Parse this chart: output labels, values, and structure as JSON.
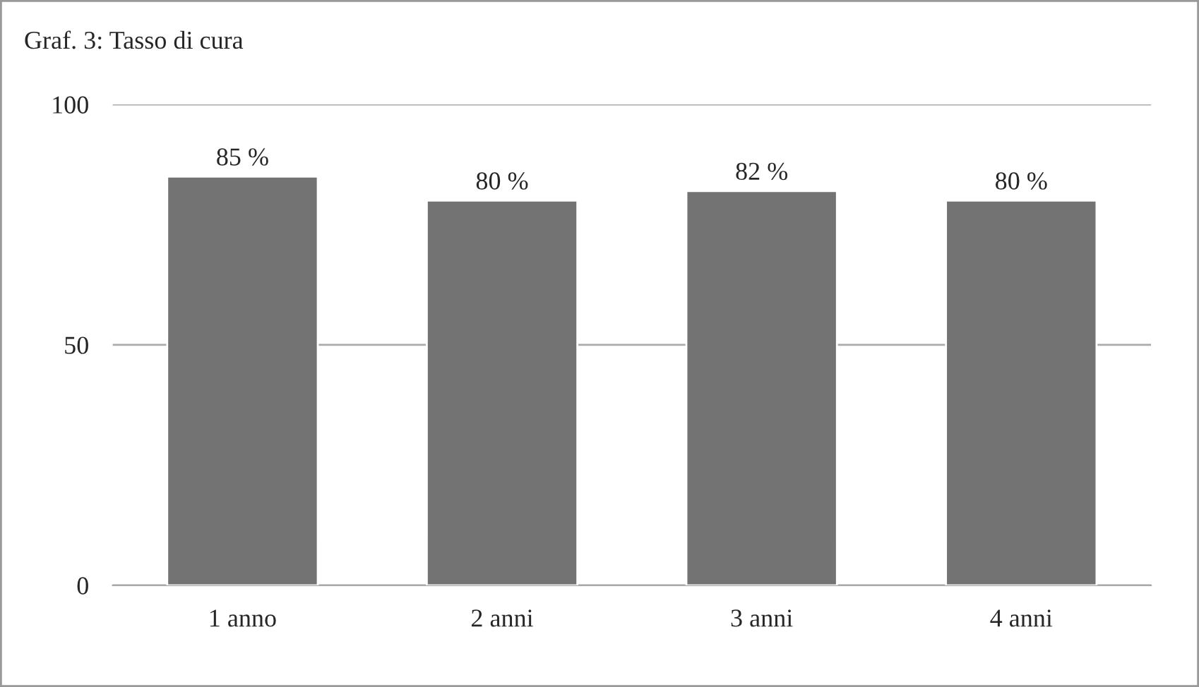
{
  "chart_data": {
    "type": "bar",
    "title": "Graf. 3: Tasso di cura",
    "categories": [
      "1 anno",
      "2 anni",
      "3 anni",
      "4 anni"
    ],
    "values": [
      85,
      80,
      82,
      80
    ],
    "value_labels": [
      "85 %",
      "80 %",
      "82 %",
      "80 %"
    ],
    "color": "#737373",
    "ylim": [
      0,
      100
    ],
    "yticks": [
      0,
      50,
      100
    ],
    "grid": "y"
  }
}
